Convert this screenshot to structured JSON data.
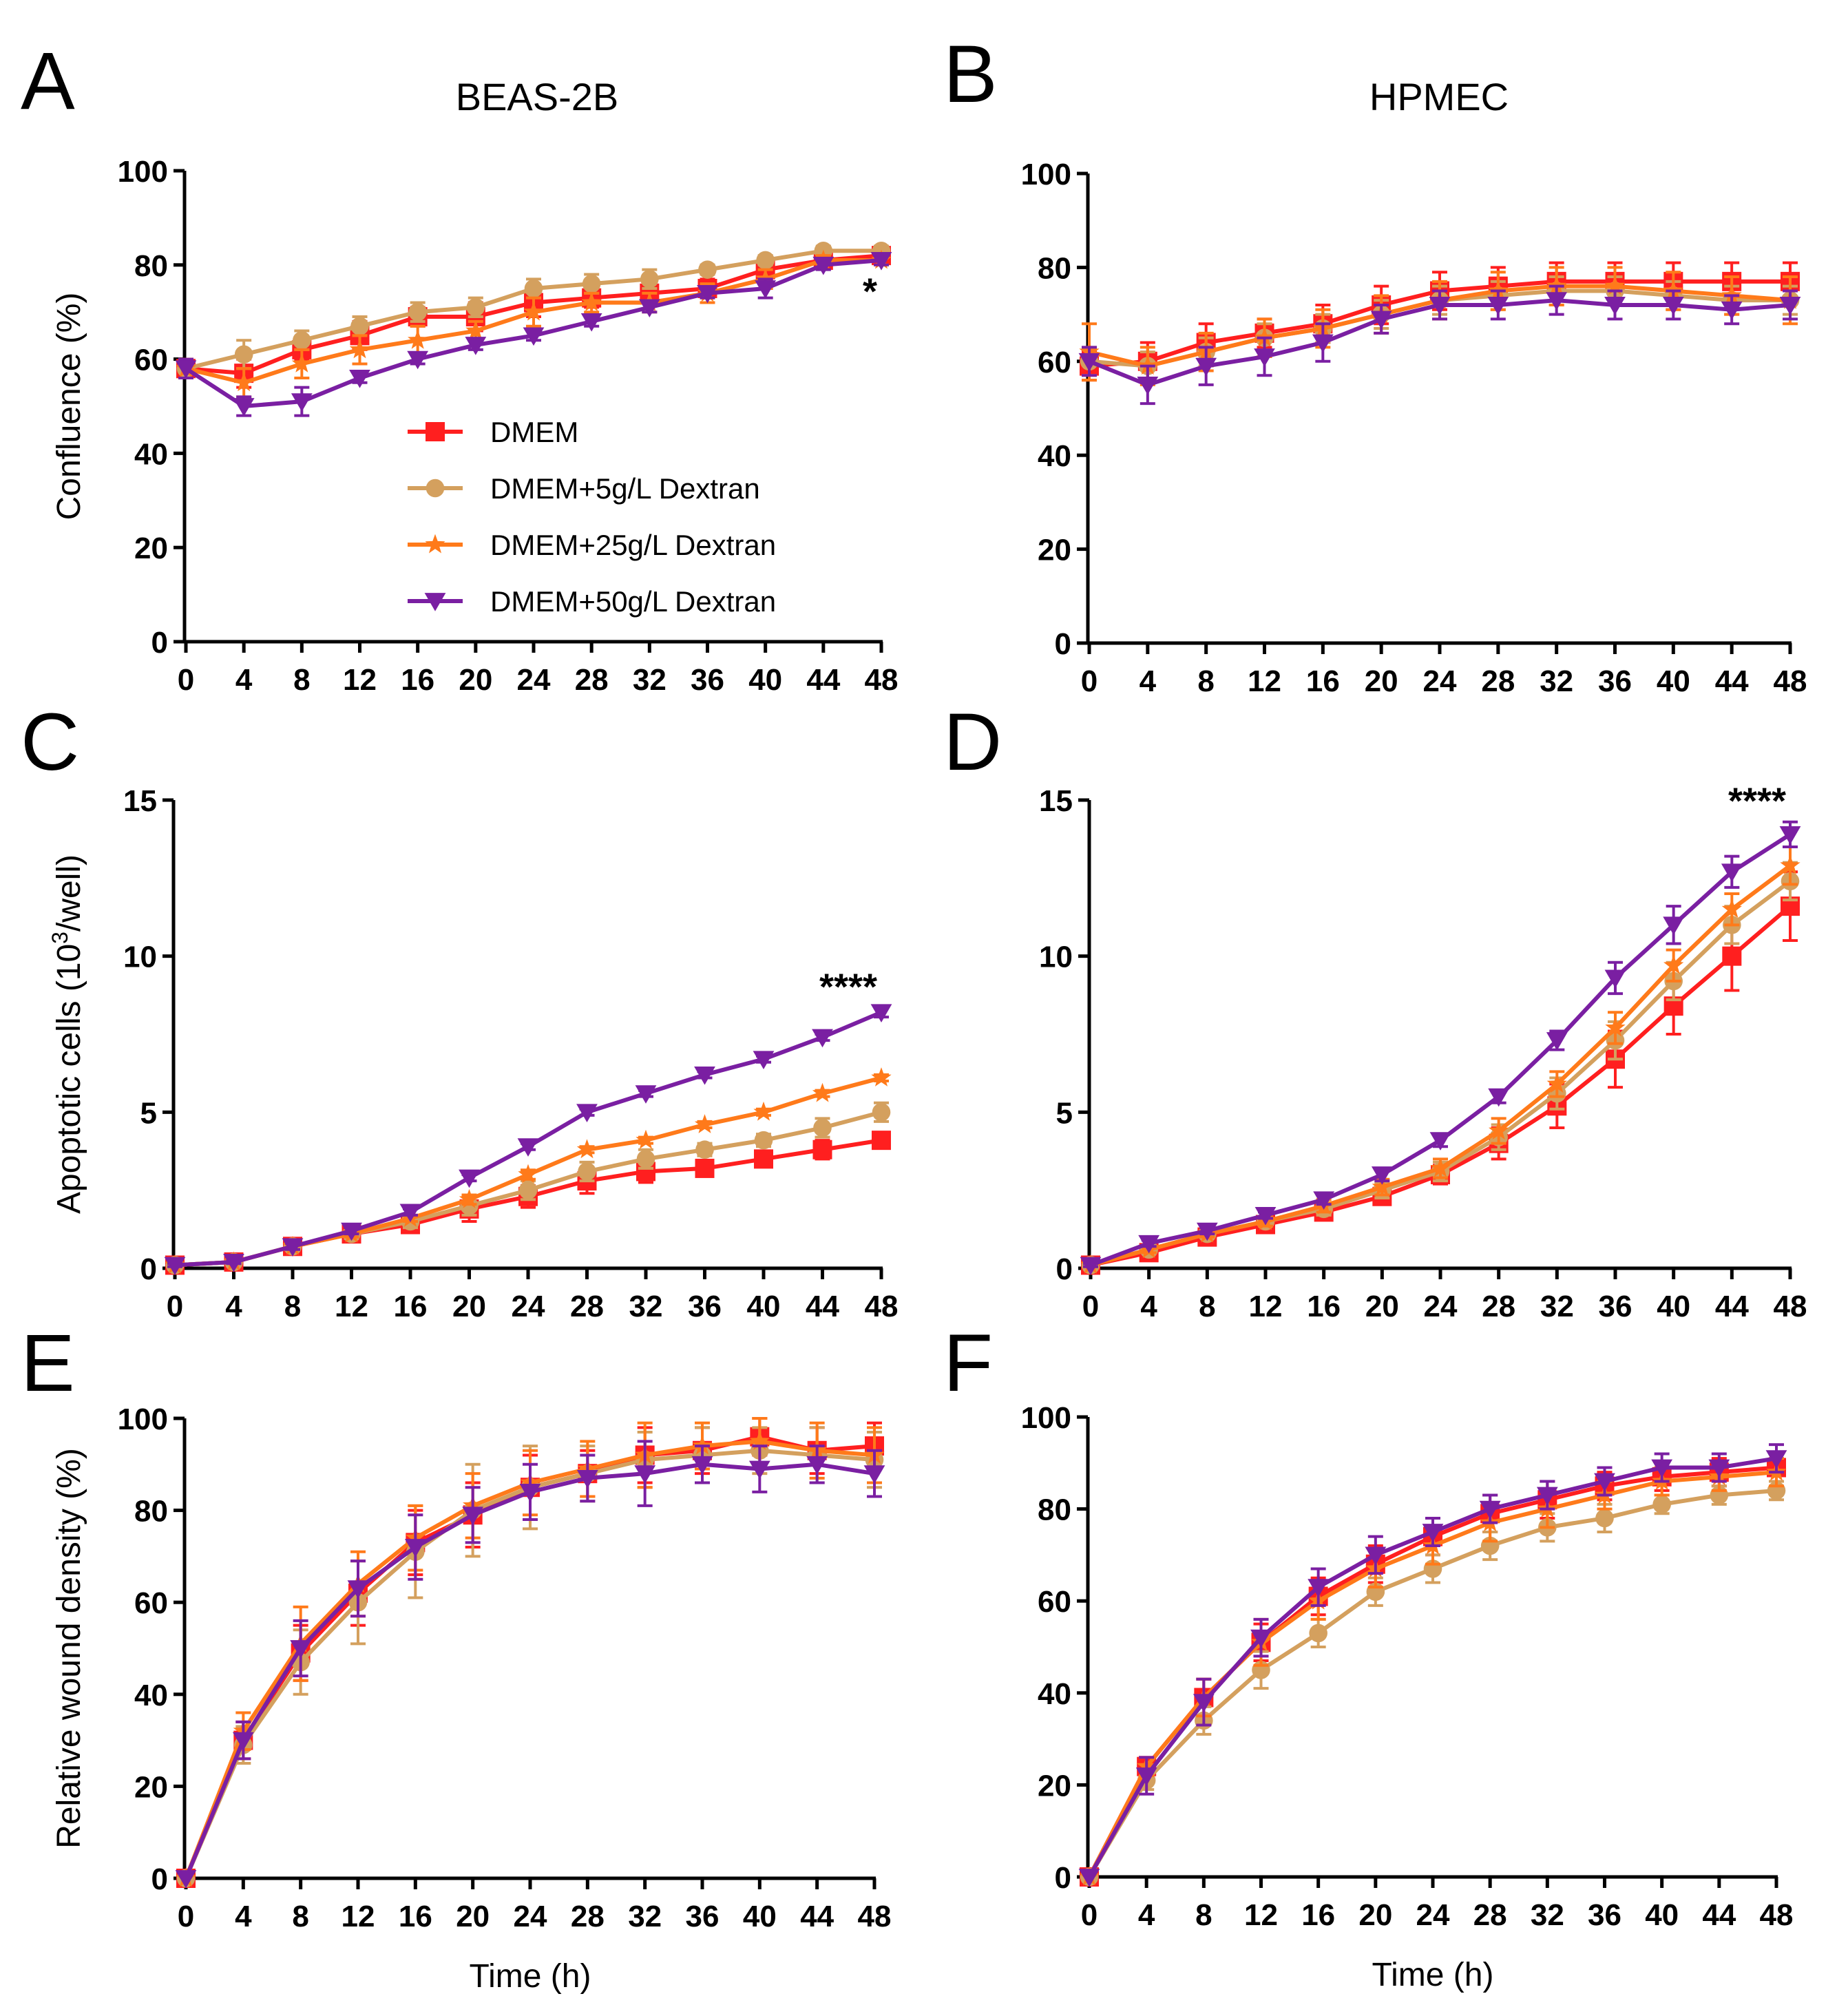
{
  "figure": {
    "column_titles": [
      "BEAS-2B",
      "HPMEC"
    ],
    "legend": {
      "placement": "inside panel A, lower-middle",
      "entries": [
        "DMEM",
        "DMEM+5g/L Dextran",
        "DMEM+25g/L Dextran",
        "DMEM+50g/L Dextran"
      ]
    }
  },
  "series_styles": [
    {
      "name": "DMEM",
      "color": "#FF1F1F",
      "marker": "square"
    },
    {
      "name": "DMEM+5g/L Dextran",
      "color": "#D4A05E",
      "marker": "circle"
    },
    {
      "name": "DMEM+25g/L Dextran",
      "color": "#FF7A1A",
      "marker": "star"
    },
    {
      "name": "DMEM+50g/L Dextran",
      "color": "#7A1FA2",
      "marker": "triangle-down"
    }
  ],
  "chart_data": [
    {
      "panel": "A",
      "type": "line",
      "title": "BEAS-2B",
      "xlabel": "",
      "ylabel": "Confluence (%)",
      "xlim": [
        0,
        48
      ],
      "ylim": [
        0,
        100
      ],
      "xticks": [
        0,
        4,
        8,
        12,
        16,
        20,
        24,
        28,
        32,
        36,
        40,
        44,
        48
      ],
      "yticks": [
        0,
        20,
        40,
        60,
        80,
        100
      ],
      "significance": "*",
      "x": [
        0,
        4,
        8,
        12,
        16,
        20,
        24,
        28,
        32,
        36,
        40,
        44,
        48
      ],
      "series": [
        {
          "name": "DMEM",
          "values": [
            58,
            57,
            62,
            65,
            69,
            69,
            72,
            73,
            74,
            75,
            79,
            81,
            82
          ],
          "errors": [
            2,
            3,
            2,
            3,
            2,
            3,
            3,
            2,
            2,
            2,
            2,
            1,
            1
          ]
        },
        {
          "name": "DMEM+5g/L Dextran",
          "values": [
            58,
            61,
            64,
            67,
            70,
            71,
            75,
            76,
            77,
            79,
            81,
            83,
            83
          ],
          "errors": [
            2,
            3,
            2,
            2,
            2,
            2,
            2,
            2,
            2,
            1,
            1,
            1,
            1
          ]
        },
        {
          "name": "DMEM+25g/L Dextran",
          "values": [
            58,
            55,
            59,
            62,
            64,
            66,
            70,
            72,
            72,
            74,
            77,
            81,
            81
          ],
          "errors": [
            2,
            3,
            3,
            3,
            3,
            2,
            3,
            2,
            2,
            2,
            2,
            1,
            1
          ]
        },
        {
          "name": "DMEM+50g/L Dextran",
          "values": [
            58,
            50,
            51,
            56,
            60,
            63,
            65,
            68,
            71,
            74,
            75,
            80,
            81
          ],
          "errors": [
            2,
            2,
            3,
            1,
            1,
            1,
            1,
            1,
            1,
            1,
            2,
            1,
            1
          ]
        }
      ]
    },
    {
      "panel": "B",
      "type": "line",
      "title": "HPMEC",
      "xlabel": "",
      "ylabel": "",
      "xlim": [
        0,
        48
      ],
      "ylim": [
        0,
        100
      ],
      "xticks": [
        0,
        4,
        8,
        12,
        16,
        20,
        24,
        28,
        32,
        36,
        40,
        44,
        48
      ],
      "yticks": [
        0,
        20,
        40,
        60,
        80,
        100
      ],
      "significance": "",
      "x": [
        0,
        4,
        8,
        12,
        16,
        20,
        24,
        28,
        32,
        36,
        40,
        44,
        48
      ],
      "series": [
        {
          "name": "DMEM",
          "values": [
            59,
            60,
            64,
            66,
            68,
            72,
            75,
            76,
            77,
            77,
            77,
            77,
            77
          ],
          "errors": [
            3,
            4,
            4,
            3,
            4,
            4,
            4,
            4,
            4,
            4,
            4,
            4,
            4
          ]
        },
        {
          "name": "DMEM+5g/L Dextran",
          "values": [
            60,
            59,
            62,
            65,
            67,
            70,
            73,
            74,
            75,
            75,
            74,
            73,
            73
          ],
          "errors": [
            3,
            3,
            3,
            3,
            3,
            3,
            3,
            3,
            3,
            3,
            3,
            3,
            3
          ]
        },
        {
          "name": "DMEM+25g/L Dextran",
          "values": [
            62,
            59,
            62,
            65,
            67,
            70,
            73,
            75,
            76,
            76,
            75,
            74,
            73
          ],
          "errors": [
            6,
            4,
            4,
            4,
            4,
            4,
            4,
            4,
            4,
            4,
            4,
            4,
            5
          ]
        },
        {
          "name": "DMEM+50g/L Dextran",
          "values": [
            60,
            55,
            59,
            61,
            64,
            69,
            72,
            72,
            73,
            72,
            72,
            71,
            72
          ],
          "errors": [
            3,
            4,
            4,
            4,
            4,
            3,
            3,
            3,
            3,
            3,
            3,
            3,
            3
          ]
        }
      ]
    },
    {
      "panel": "C",
      "type": "line",
      "title": "",
      "xlabel": "",
      "ylabel": "Apoptotic cells (10",
      "ylabel_sup": "3",
      "ylabel_tail": "/well)",
      "xlim": [
        0,
        48
      ],
      "ylim": [
        0,
        15
      ],
      "xticks": [
        0,
        4,
        8,
        12,
        16,
        20,
        24,
        28,
        32,
        36,
        40,
        44,
        48
      ],
      "yticks": [
        0,
        5,
        10,
        15
      ],
      "significance": "****",
      "x": [
        0,
        4,
        8,
        12,
        16,
        20,
        24,
        28,
        32,
        36,
        40,
        44,
        48
      ],
      "series": [
        {
          "name": "DMEM",
          "values": [
            0.1,
            0.2,
            0.7,
            1.1,
            1.4,
            1.9,
            2.3,
            2.8,
            3.1,
            3.2,
            3.5,
            3.8,
            4.1
          ],
          "errors": [
            0.05,
            0.05,
            0.1,
            0.15,
            0.2,
            0.4,
            0.35,
            0.4,
            0.35,
            0.2,
            0.2,
            0.3,
            0.2
          ]
        },
        {
          "name": "DMEM+5g/L Dextran",
          "values": [
            0.1,
            0.2,
            0.7,
            1.1,
            1.5,
            2.0,
            2.5,
            3.1,
            3.5,
            3.8,
            4.1,
            4.5,
            5.0
          ],
          "errors": [
            0.05,
            0.05,
            0.1,
            0.15,
            0.2,
            0.3,
            0.3,
            0.3,
            0.3,
            0.2,
            0.2,
            0.3,
            0.3
          ]
        },
        {
          "name": "DMEM+25g/L Dextran",
          "values": [
            0.1,
            0.2,
            0.7,
            1.1,
            1.6,
            2.2,
            3.0,
            3.8,
            4.1,
            4.6,
            5.0,
            5.6,
            6.1
          ],
          "errors": [
            0.05,
            0.05,
            0.1,
            0.1,
            0.1,
            0.15,
            0.15,
            0.1,
            0.1,
            0.1,
            0.1,
            0.1,
            0.1
          ]
        },
        {
          "name": "DMEM+50g/L Dextran",
          "values": [
            0.1,
            0.2,
            0.7,
            1.2,
            1.8,
            2.9,
            3.9,
            5.0,
            5.6,
            6.2,
            6.7,
            7.4,
            8.2
          ],
          "errors": [
            0.05,
            0.05,
            0.1,
            0.1,
            0.1,
            0.1,
            0.1,
            0.1,
            0.1,
            0.1,
            0.1,
            0.1,
            0.15
          ]
        }
      ]
    },
    {
      "panel": "D",
      "type": "line",
      "title": "",
      "xlabel": "",
      "ylabel": "",
      "xlim": [
        0,
        48
      ],
      "ylim": [
        0,
        15
      ],
      "xticks": [
        0,
        4,
        8,
        12,
        16,
        20,
        24,
        28,
        32,
        36,
        40,
        44,
        48
      ],
      "yticks": [
        0,
        5,
        10,
        15
      ],
      "significance": "****",
      "x": [
        0,
        4,
        8,
        12,
        16,
        20,
        24,
        28,
        32,
        36,
        40,
        44,
        48
      ],
      "series": [
        {
          "name": "DMEM",
          "values": [
            0.1,
            0.5,
            1.0,
            1.4,
            1.8,
            2.3,
            3.0,
            4.0,
            5.2,
            6.7,
            8.4,
            10.0,
            11.6
          ],
          "errors": [
            0.05,
            0.1,
            0.1,
            0.15,
            0.2,
            0.25,
            0.3,
            0.5,
            0.7,
            0.9,
            0.9,
            1.1,
            1.1
          ]
        },
        {
          "name": "DMEM+5g/L Dextran",
          "values": [
            0.1,
            0.6,
            1.1,
            1.5,
            1.9,
            2.5,
            3.1,
            4.2,
            5.6,
            7.3,
            9.2,
            11.0,
            12.4
          ],
          "errors": [
            0.05,
            0.1,
            0.1,
            0.15,
            0.2,
            0.25,
            0.3,
            0.4,
            0.5,
            0.6,
            0.6,
            0.6,
            0.6
          ]
        },
        {
          "name": "DMEM+25g/L Dextran",
          "values": [
            0.1,
            0.6,
            1.1,
            1.5,
            2.0,
            2.6,
            3.2,
            4.4,
            5.9,
            7.7,
            9.7,
            11.5,
            12.9
          ],
          "errors": [
            0.05,
            0.1,
            0.1,
            0.15,
            0.2,
            0.25,
            0.3,
            0.4,
            0.4,
            0.5,
            0.5,
            0.5,
            0.6
          ]
        },
        {
          "name": "DMEM+50g/L Dextran",
          "values": [
            0.1,
            0.8,
            1.2,
            1.7,
            2.2,
            3.0,
            4.1,
            5.5,
            7.3,
            9.3,
            11.0,
            12.7,
            13.9
          ],
          "errors": [
            0.05,
            0.1,
            0.1,
            0.1,
            0.15,
            0.2,
            0.2,
            0.2,
            0.3,
            0.5,
            0.6,
            0.5,
            0.4
          ]
        }
      ]
    },
    {
      "panel": "E",
      "type": "line",
      "title": "",
      "xlabel": "Time (h)",
      "ylabel": "Relative wound density (%)",
      "xlim": [
        0,
        48
      ],
      "ylim": [
        0,
        100
      ],
      "xticks": [
        0,
        4,
        8,
        12,
        16,
        20,
        24,
        28,
        32,
        36,
        40,
        44,
        48
      ],
      "yticks": [
        0,
        20,
        40,
        60,
        80,
        100
      ],
      "significance": "",
      "x": [
        0,
        4,
        8,
        12,
        16,
        20,
        24,
        28,
        32,
        36,
        40,
        44,
        48
      ],
      "series": [
        {
          "name": "DMEM",
          "values": [
            0,
            30,
            49,
            62,
            73,
            79,
            85,
            88,
            92,
            93,
            96,
            93,
            94
          ],
          "errors": [
            0,
            4,
            6,
            7,
            7,
            7,
            7,
            5,
            6,
            5,
            4,
            5,
            5
          ]
        },
        {
          "name": "DMEM+5g/L Dextran",
          "values": [
            0,
            29,
            47,
            60,
            71,
            80,
            85,
            88,
            91,
            92,
            93,
            92,
            91
          ],
          "errors": [
            0,
            4,
            7,
            9,
            10,
            10,
            9,
            6,
            6,
            6,
            5,
            6,
            6
          ]
        },
        {
          "name": "DMEM+25g/L Dextran",
          "values": [
            0,
            32,
            51,
            64,
            74,
            81,
            86,
            89,
            92,
            94,
            95,
            93,
            92
          ],
          "errors": [
            0,
            4,
            8,
            7,
            7,
            7,
            7,
            6,
            7,
            5,
            5,
            6,
            6
          ]
        },
        {
          "name": "DMEM+50g/L Dextran",
          "values": [
            0,
            30,
            50,
            63,
            72,
            79,
            84,
            87,
            88,
            90,
            89,
            90,
            88
          ],
          "errors": [
            0,
            4,
            6,
            6,
            7,
            6,
            6,
            5,
            7,
            4,
            5,
            4,
            5
          ]
        }
      ]
    },
    {
      "panel": "F",
      "type": "line",
      "title": "",
      "xlabel": "Time (h)",
      "ylabel": "",
      "xlim": [
        0,
        48
      ],
      "ylim": [
        0,
        100
      ],
      "xticks": [
        0,
        4,
        8,
        12,
        16,
        20,
        24,
        28,
        32,
        36,
        40,
        44,
        48
      ],
      "yticks": [
        0,
        20,
        40,
        60,
        80,
        100
      ],
      "significance": "",
      "x": [
        0,
        4,
        8,
        12,
        16,
        20,
        24,
        28,
        32,
        36,
        40,
        44,
        48
      ],
      "series": [
        {
          "name": "DMEM",
          "values": [
            0,
            24,
            39,
            51,
            61,
            68,
            74,
            79,
            82,
            85,
            87,
            88,
            89
          ],
          "errors": [
            0,
            2,
            4,
            4,
            4,
            4,
            4,
            4,
            4,
            3,
            3,
            3,
            3
          ]
        },
        {
          "name": "DMEM+5g/L Dextran",
          "values": [
            0,
            21,
            34,
            45,
            53,
            62,
            67,
            72,
            76,
            78,
            81,
            83,
            84
          ],
          "errors": [
            0,
            2,
            3,
            4,
            3,
            3,
            3,
            3,
            3,
            3,
            2,
            2,
            2
          ]
        },
        {
          "name": "DMEM+25g/L Dextran",
          "values": [
            0,
            24,
            39,
            51,
            60,
            67,
            72,
            77,
            80,
            83,
            86,
            87,
            88
          ],
          "errors": [
            0,
            2,
            4,
            5,
            4,
            4,
            4,
            4,
            4,
            3,
            3,
            3,
            3
          ]
        },
        {
          "name": "DMEM+50g/L Dextran",
          "values": [
            0,
            22,
            38,
            52,
            63,
            70,
            75,
            80,
            83,
            86,
            89,
            89,
            91
          ],
          "errors": [
            0,
            4,
            5,
            4,
            4,
            4,
            3,
            3,
            3,
            3,
            3,
            3,
            3
          ]
        }
      ]
    }
  ]
}
